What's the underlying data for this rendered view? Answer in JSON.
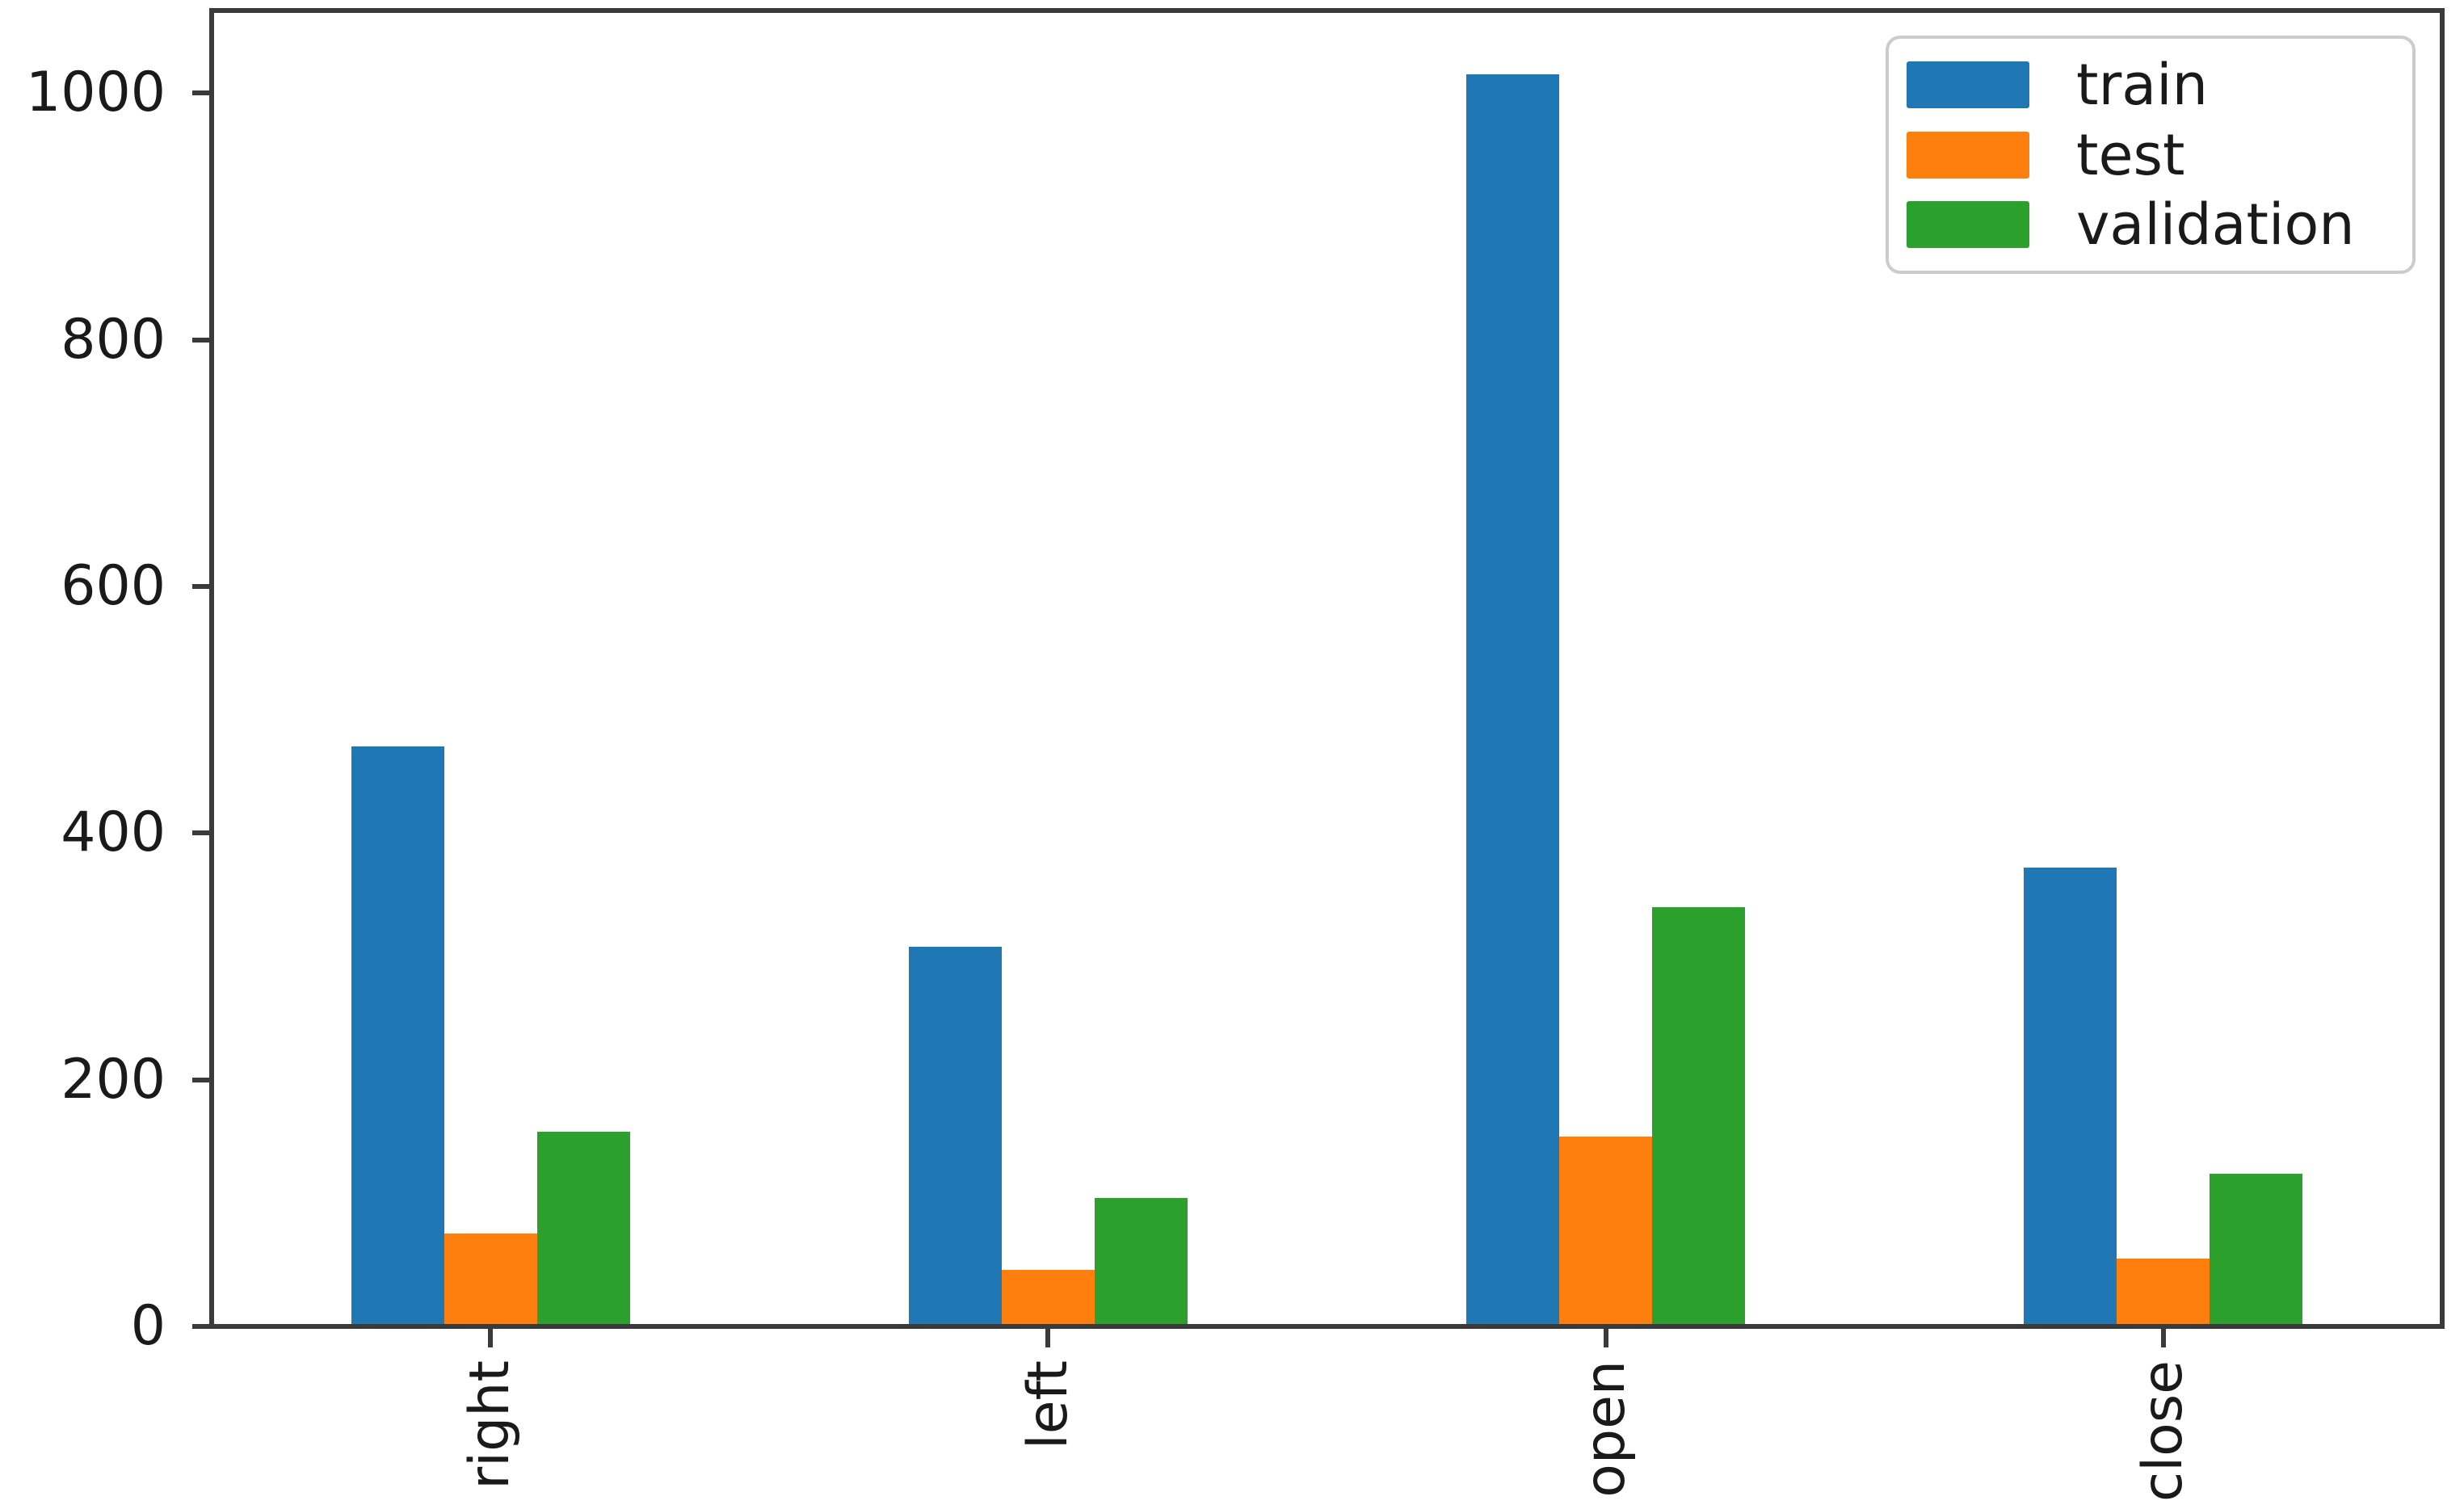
{
  "chart_data": {
    "type": "bar",
    "title": "",
    "xlabel": "",
    "ylabel": "",
    "categories": [
      "right",
      "left",
      "open",
      "close"
    ],
    "series": [
      {
        "name": "train",
        "color": "#1f77b4",
        "values": [
          470,
          308,
          1015,
          372
        ]
      },
      {
        "name": "test",
        "color": "#ff7f0e",
        "values": [
          75,
          46,
          154,
          55
        ]
      },
      {
        "name": "validation",
        "color": "#2ca02c",
        "values": [
          158,
          104,
          340,
          124
        ]
      }
    ],
    "yticks": [
      0,
      200,
      400,
      600,
      800,
      1000
    ],
    "ylim": [
      0,
      1067
    ],
    "grid": false,
    "bar_total_width_fraction": 0.5,
    "x_tick_label_rotation_deg": 90,
    "legend": {
      "position": "upper-right",
      "labels": [
        "train",
        "test",
        "validation"
      ]
    }
  },
  "style_colors": {
    "background": "#ffffff",
    "spine": "#3a3a3a",
    "tick_text": "#1a1a1a",
    "legend_border": "#cccccc",
    "legend_background": "#ffffff"
  }
}
